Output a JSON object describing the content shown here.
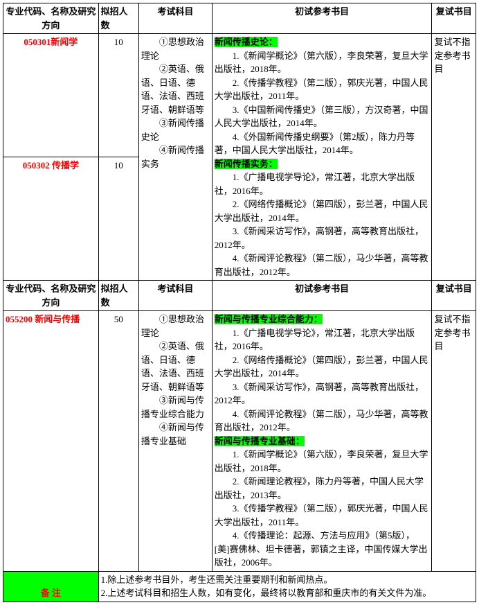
{
  "headers": {
    "c1": "专业代码、名称及研究方向",
    "c2": "拟招人数",
    "c3": "考试科目",
    "c4": "初试参考书目",
    "c5": "复试书目"
  },
  "row1": {
    "code": "050301新闻学",
    "num": "10"
  },
  "row2": {
    "code": "050302 传播学",
    "num": "10"
  },
  "exam1": {
    "l1": "　　①思想政治理论",
    "l2": "　　②英语、俄语、日语、德语、法语、西班牙语、朝鲜语等",
    "l3": "　　③新闻传播史论",
    "l4": "　　④新闻传播实务"
  },
  "books1": {
    "h1": "新闻传播史论：",
    "b1": "　　1.《新闻学概论》（第六版），李良荣著，复旦大学出版社，2018年。",
    "b2": "　　2.《传播学教程》（第二版），郭庆光著，中国人民大学出版社，2011年。",
    "b3": "　　3.《中国新闻传播史》（第三版），方汉奇著，中国人民大学出版社，2014年。",
    "b4": "　　4.《外国新闻传播史纲要》（第2版），陈力丹等著，中国人民大学出版社，2014年。",
    "h2": "新闻传播实务：",
    "b5": "　　1.《广播电视学导论》，常江著，北京大学出版社，2016年。",
    "b6": "　　2.《网络传播概论》（第四版），彭兰著，中国人民大学出版社，2014年。",
    "b7": "　　3.《新闻采访写作》，高钢著，高等教育出版社，2012年。",
    "b8": "　　4.《新闻评论教程》（第二版），马少华著，高等教育出版社，2012年。"
  },
  "fushi1": "复试不指定参考书目",
  "row3": {
    "code": "055200 新闻与传播",
    "num": "50"
  },
  "exam2": {
    "l1": "　　①思想政治理论",
    "l2": "　　②英语、俄语、日语、德语、法语、西班牙语、朝鲜语等",
    "l3": "　　③新闻与传播专业综合能力",
    "l4": "　　④新闻与传播专业基础"
  },
  "books2": {
    "h1": "新闻与传播专业综合能力：",
    "b1": "　　1.《广播电视学导论》，常江著，北京大学出版社，2016年。",
    "b2": "　　2.《网络传播概论》（第四版），彭兰著，中国人民大学出版社，2014年。",
    "b3": "　　3.《新闻采访写作》，高钢著，高等教育出版社，2012年。",
    "b4": "　　4.《新闻评论教程》（第二版），马少华著，高等教育出版社，2012年。",
    "h2": "新闻与传播专业基础：",
    "b5": "　　1.《新闻学概论》（第六版），李良荣著，复旦大学出版社，2018年。",
    "b6": "　　2.《新闻理论教程》，陈力丹等著，中国人民大学出版社，2013年。",
    "b7": "　　3.《传播学教程》（第二版），郭庆光著，中国人民大学出版社，2011年。",
    "b8": "　　4.《传播理论：起源、方法与应用》（第5版），[美]赛佛林、坦卡德著，郭镇之主译，中国传媒大学出版社，2006年。"
  },
  "fushi2": "复试不指定参考书目",
  "note": {
    "label": "备 注",
    "l1": "1.除上述参考书目外，考生还需关注重要期刊和新闻热点。",
    "l2": "2.上述考试科目和招生人数，如有变化，最终将以教育部和重庆市的有关文件为准。"
  }
}
